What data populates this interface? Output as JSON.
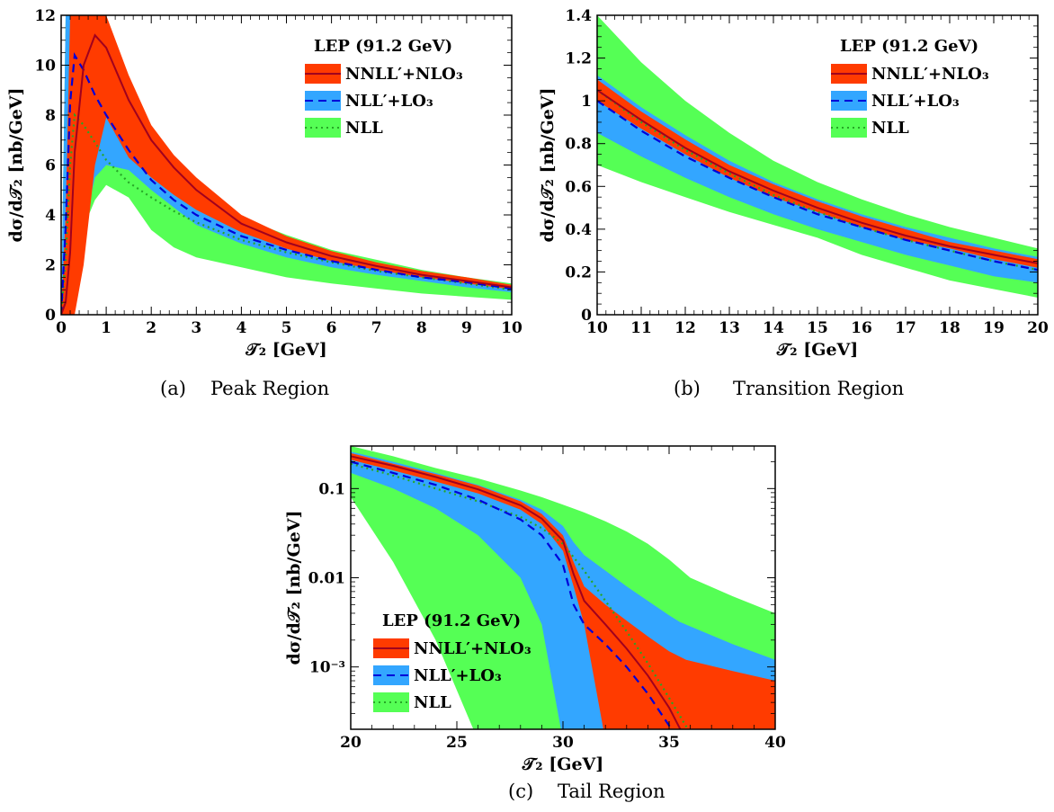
{
  "colors": {
    "nnll_band": "#ff3b00",
    "nnll_line": "#a0001e",
    "nll_prime_band": "#33a6ff",
    "nll_prime_line": "#0000d9",
    "nll_band": "#55ff55",
    "nll_line": "#26a626"
  },
  "legend": {
    "title": "LEP (91.2 GeV)",
    "entries": [
      "NNLL′+NLO₃",
      "NLL′+LO₃",
      "NLL"
    ]
  },
  "ylabel": "dσ/d𝒯₂ [nb/GeV]",
  "xlabel": "𝒯₂ [GeV]",
  "chart_data": [
    {
      "type": "area",
      "panel": "a",
      "caption_tag": "(a)",
      "caption": "Peak Region",
      "title": "",
      "xlabel": "𝒯₂ [GeV]",
      "ylabel": "dσ/d𝒯₂ [nb/GeV]",
      "xlim": [
        0,
        10
      ],
      "ylim": [
        0,
        12
      ],
      "yscale": "linear",
      "xticks": [
        0,
        1,
        2,
        3,
        4,
        5,
        6,
        7,
        8,
        9,
        10
      ],
      "xtick_labels": [
        "0",
        "1",
        "2",
        "3",
        "4",
        "5",
        "6",
        "7",
        "8",
        "9",
        "10"
      ],
      "yticks": [
        0,
        2,
        4,
        6,
        8,
        10,
        12
      ],
      "ytick_labels": [
        "0",
        "2",
        "4",
        "6",
        "8",
        "10",
        "12"
      ],
      "legend_position": "top-right",
      "series": [
        {
          "name": "NLL",
          "style": "dotted",
          "x": [
            0,
            0.1,
            0.2,
            0.3,
            0.5,
            0.75,
            1,
            1.5,
            2,
            2.5,
            3,
            4,
            5,
            6,
            7,
            8,
            9,
            10
          ],
          "center": [
            0,
            2.2,
            6.0,
            8.0,
            7.6,
            6.9,
            6.2,
            5.3,
            4.7,
            4.15,
            3.7,
            3.0,
            2.5,
            2.1,
            1.75,
            1.5,
            1.25,
            1.0
          ],
          "low": [
            0,
            0,
            0.3,
            1.8,
            3.5,
            4.6,
            5.2,
            4.7,
            3.4,
            2.7,
            2.3,
            1.9,
            1.5,
            1.25,
            1.05,
            0.85,
            0.72,
            0.6
          ],
          "high": [
            0,
            12,
            12,
            12,
            12,
            12,
            12,
            8.5,
            6.6,
            5.6,
            4.9,
            3.9,
            3.2,
            2.6,
            2.2,
            1.8,
            1.5,
            1.25
          ]
        },
        {
          "name": "NLL′+LO₃",
          "style": "dashed",
          "x": [
            0,
            0.1,
            0.2,
            0.3,
            0.5,
            0.75,
            1,
            1.5,
            2,
            2.5,
            3,
            4,
            5,
            6,
            7,
            8,
            9,
            10
          ],
          "center": [
            0,
            3.5,
            8.5,
            10.4,
            9.8,
            8.8,
            8.0,
            6.6,
            5.4,
            4.6,
            4.0,
            3.15,
            2.6,
            2.15,
            1.8,
            1.5,
            1.3,
            1.05
          ],
          "low": [
            0,
            0,
            0.5,
            1.2,
            3.5,
            5.5,
            6.0,
            5.8,
            5.0,
            4.3,
            3.6,
            2.85,
            2.3,
            1.9,
            1.6,
            1.35,
            1.1,
            0.9
          ],
          "high": [
            0,
            12,
            12,
            12,
            12,
            12,
            11.5,
            8.2,
            6.5,
            5.4,
            4.5,
            3.55,
            2.85,
            2.35,
            1.95,
            1.65,
            1.4,
            1.18
          ]
        },
        {
          "name": "NNLL′+NLO₃",
          "style": "solid",
          "x": [
            0,
            0.1,
            0.2,
            0.3,
            0.5,
            0.75,
            1,
            1.5,
            2,
            2.5,
            3,
            4,
            5,
            6,
            7,
            8,
            9,
            10
          ],
          "center": [
            0,
            0.5,
            2.5,
            6.5,
            10.0,
            11.2,
            10.7,
            8.6,
            7.0,
            5.9,
            5.0,
            3.65,
            2.9,
            2.35,
            1.95,
            1.6,
            1.35,
            1.1
          ],
          "low": [
            0,
            0,
            0,
            0,
            2.0,
            6.0,
            7.9,
            6.3,
            5.5,
            4.8,
            4.2,
            3.3,
            2.65,
            2.15,
            1.8,
            1.5,
            1.25,
            1.02
          ],
          "high": [
            0,
            4,
            12,
            12,
            12,
            12,
            12,
            9.6,
            7.6,
            6.4,
            5.5,
            4.0,
            3.15,
            2.55,
            2.1,
            1.75,
            1.5,
            1.2
          ]
        }
      ]
    },
    {
      "type": "area",
      "panel": "b",
      "caption_tag": "(b)",
      "caption": "Transition Region",
      "title": "",
      "xlabel": "𝒯₂ [GeV]",
      "ylabel": "dσ/d𝒯₂ [nb/GeV]",
      "xlim": [
        10,
        20
      ],
      "ylim": [
        0,
        1.4
      ],
      "yscale": "linear",
      "xticks": [
        10,
        11,
        12,
        13,
        14,
        15,
        16,
        17,
        18,
        19,
        20
      ],
      "xtick_labels": [
        "10",
        "11",
        "12",
        "13",
        "14",
        "15",
        "16",
        "17",
        "18",
        "19",
        "20"
      ],
      "yticks": [
        0,
        0.2,
        0.4,
        0.6,
        0.8,
        1.0,
        1.2,
        1.4
      ],
      "ytick_labels": [
        "0",
        "0.2",
        "0.4",
        "0.6",
        "0.8",
        "1",
        "1.2",
        "1.4"
      ],
      "legend_position": "top-right",
      "series": [
        {
          "name": "NLL",
          "style": "dotted",
          "x": [
            10,
            11,
            12,
            13,
            14,
            15,
            16,
            17,
            18,
            19,
            20
          ],
          "center": [
            1.05,
            0.9,
            0.77,
            0.66,
            0.56,
            0.48,
            0.41,
            0.35,
            0.3,
            0.25,
            0.21
          ],
          "low": [
            0.7,
            0.62,
            0.55,
            0.48,
            0.42,
            0.36,
            0.28,
            0.22,
            0.16,
            0.12,
            0.08
          ],
          "high": [
            1.4,
            1.18,
            1.0,
            0.85,
            0.72,
            0.62,
            0.54,
            0.47,
            0.41,
            0.36,
            0.31
          ]
        },
        {
          "name": "NLL′+LO₃",
          "style": "dashed",
          "x": [
            10,
            11,
            12,
            13,
            14,
            15,
            16,
            17,
            18,
            19,
            20
          ],
          "center": [
            1.0,
            0.86,
            0.74,
            0.64,
            0.55,
            0.47,
            0.41,
            0.35,
            0.3,
            0.25,
            0.21
          ],
          "low": [
            0.85,
            0.74,
            0.64,
            0.55,
            0.47,
            0.4,
            0.34,
            0.28,
            0.23,
            0.18,
            0.15
          ],
          "high": [
            1.12,
            0.97,
            0.84,
            0.72,
            0.62,
            0.54,
            0.47,
            0.41,
            0.36,
            0.31,
            0.27
          ]
        },
        {
          "name": "NNLL′+NLO₃",
          "style": "solid",
          "x": [
            10,
            11,
            12,
            13,
            14,
            15,
            16,
            17,
            18,
            19,
            20
          ],
          "center": [
            1.05,
            0.91,
            0.78,
            0.67,
            0.58,
            0.5,
            0.43,
            0.37,
            0.32,
            0.28,
            0.24
          ],
          "low": [
            1.0,
            0.87,
            0.75,
            0.64,
            0.55,
            0.48,
            0.41,
            0.35,
            0.31,
            0.26,
            0.22
          ],
          "high": [
            1.1,
            0.95,
            0.82,
            0.7,
            0.61,
            0.53,
            0.46,
            0.4,
            0.34,
            0.3,
            0.26
          ]
        }
      ]
    },
    {
      "type": "area",
      "panel": "c",
      "caption_tag": "(c)",
      "caption": "Tail Region",
      "title": "",
      "xlabel": "𝒯₂ [GeV]",
      "ylabel": "dσ/d𝒯₂ [nb/GeV]",
      "xlim": [
        20,
        40
      ],
      "ylim": [
        0.0002,
        0.3
      ],
      "yscale": "log",
      "xticks": [
        20,
        25,
        30,
        35,
        40
      ],
      "xtick_labels": [
        "20",
        "25",
        "30",
        "35",
        "40"
      ],
      "yticks": [
        0.001,
        0.01,
        0.1
      ],
      "ytick_labels": [
        "10⁻³",
        "0.01",
        "0.1"
      ],
      "legend_position": "bottom-left",
      "series": [
        {
          "name": "NLL",
          "style": "dotted",
          "x": [
            20,
            22,
            24,
            26,
            28,
            29,
            30,
            31,
            32,
            33,
            34,
            35,
            36
          ],
          "center": [
            0.19,
            0.14,
            0.1,
            0.072,
            0.048,
            0.036,
            0.024,
            0.012,
            0.0055,
            0.0025,
            0.0011,
            0.00045,
            0.00018
          ],
          "low": [
            0.08,
            0.015,
            0.002,
            0.00015,
            0.00015,
            0.00015,
            0.00015,
            0.00015,
            0.00015,
            0.00015,
            0.00015,
            0.00015,
            0.00015
          ],
          "high": [
            0.3,
            0.23,
            0.17,
            0.13,
            0.095,
            0.08,
            0.066,
            0.054,
            0.043,
            0.033,
            0.024,
            0.016,
            0.01
          ],
          "x_high_ext": [
            36,
            38,
            40
          ],
          "high_ext": [
            0.01,
            0.0062,
            0.004
          ]
        },
        {
          "name": "NLL′+LO₃",
          "style": "dashed",
          "x": [
            20,
            22,
            24,
            26,
            28,
            29,
            30,
            30.5,
            31,
            32,
            33,
            34,
            35,
            35.5
          ],
          "center": [
            0.2,
            0.15,
            0.11,
            0.075,
            0.045,
            0.03,
            0.014,
            0.005,
            0.003,
            0.0018,
            0.001,
            0.0005,
            0.00022,
            0.00015
          ],
          "low": [
            0.15,
            0.1,
            0.06,
            0.03,
            0.01,
            0.003,
            0.00015,
            0.00015,
            0.00015,
            0.00015,
            0.00015,
            0.00015,
            0.00015,
            0.00015
          ],
          "high": [
            0.26,
            0.2,
            0.15,
            0.11,
            0.075,
            0.058,
            0.038,
            0.025,
            0.018,
            0.012,
            0.008,
            0.0055,
            0.0038,
            0.0032
          ],
          "x_high_ext": [
            35.5,
            38,
            40
          ],
          "high_ext": [
            0.0032,
            0.0018,
            0.0012
          ]
        },
        {
          "name": "NNLL′+NLO₃",
          "style": "solid",
          "x": [
            20,
            22,
            24,
            26,
            28,
            29,
            30,
            30.5,
            31,
            32,
            33,
            34,
            35,
            35.8
          ],
          "center": [
            0.23,
            0.18,
            0.135,
            0.098,
            0.065,
            0.046,
            0.026,
            0.011,
            0.0055,
            0.003,
            0.0016,
            0.0008,
            0.00035,
            0.00015
          ],
          "low": [
            0.21,
            0.16,
            0.12,
            0.088,
            0.058,
            0.04,
            0.02,
            0.008,
            0.003,
            0.00015,
            0.00015,
            0.00015,
            0.00015,
            0.00015
          ],
          "high": [
            0.25,
            0.19,
            0.145,
            0.108,
            0.072,
            0.052,
            0.03,
            0.015,
            0.008,
            0.005,
            0.0033,
            0.0022,
            0.0015,
            0.0012
          ],
          "x_high_ext": [
            35.8,
            38,
            40
          ],
          "high_ext": [
            0.0012,
            0.0009,
            0.0007
          ]
        }
      ]
    }
  ]
}
